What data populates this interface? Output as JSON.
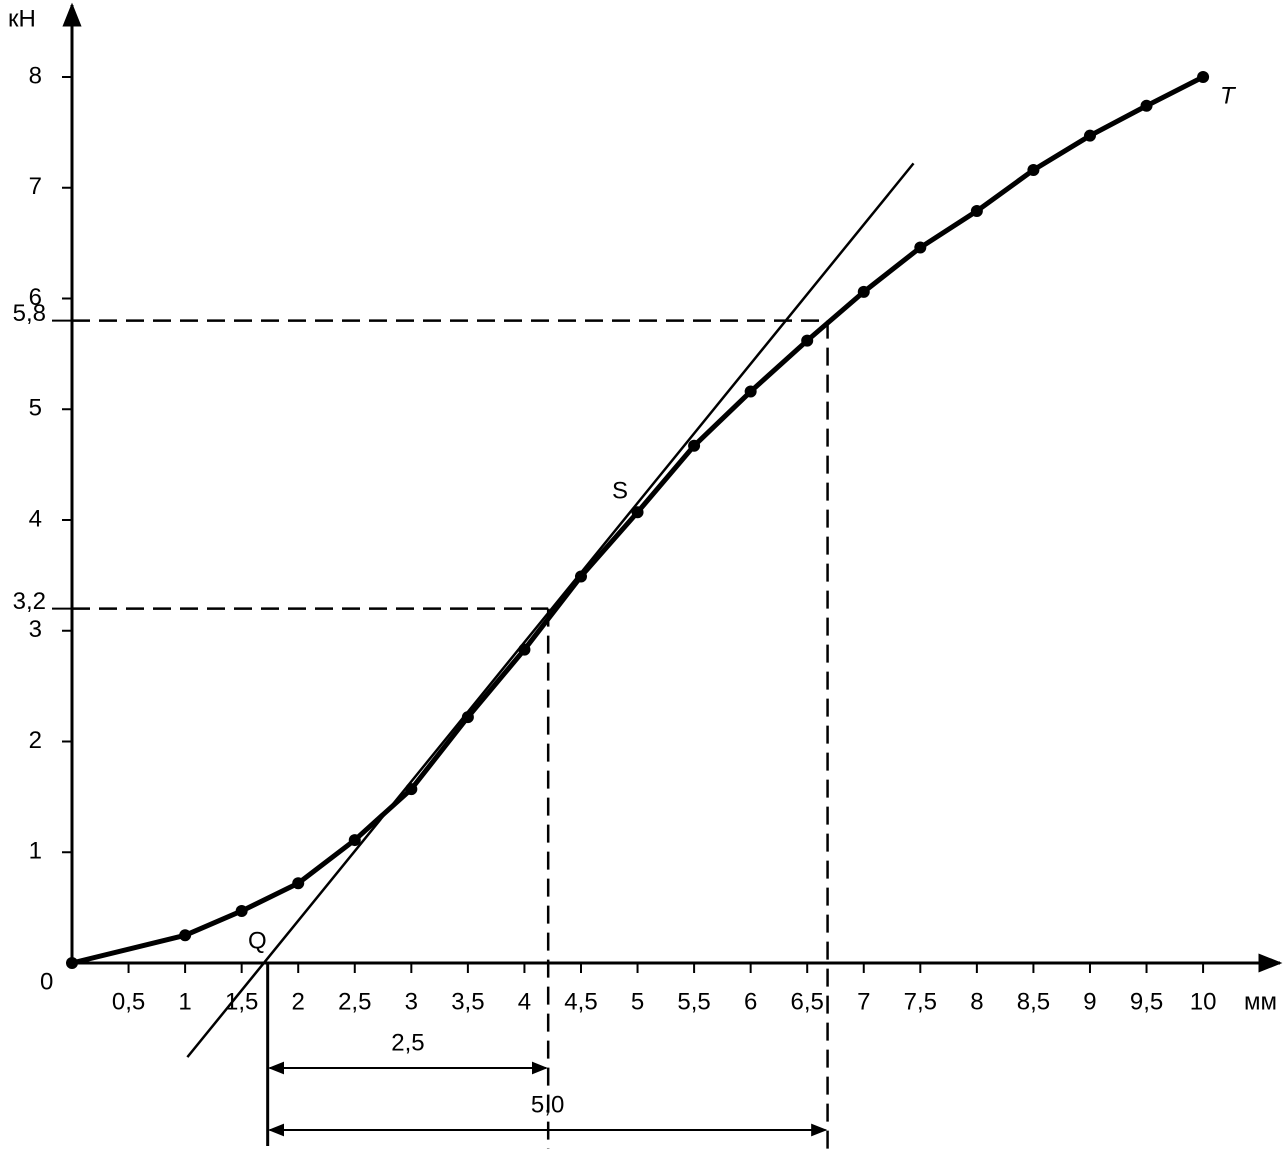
{
  "chart_data": {
    "type": "line",
    "x_label": "мм",
    "y_label": "кН",
    "origin_label": "0",
    "x": [
      0,
      1,
      1.5,
      2,
      2.5,
      3,
      3.5,
      4,
      4.5,
      5,
      5.5,
      6,
      6.5,
      7,
      7.5,
      8,
      8.5,
      9,
      9.5,
      10
    ],
    "values": [
      0,
      0.25,
      0.47,
      0.72,
      1.11,
      1.57,
      2.22,
      2.83,
      3.49,
      4.07,
      4.67,
      5.16,
      5.62,
      6.06,
      6.46,
      6.79,
      7.16,
      7.47,
      7.74,
      8.0
    ],
    "color": "#000000",
    "xlim": [
      0,
      10.68
    ],
    "ylim": [
      0,
      8.65
    ],
    "xticks": [
      {
        "value": 0.5,
        "label": "0,5"
      },
      1,
      {
        "value": 1.5,
        "label": "1,5"
      },
      2,
      {
        "value": 2.5,
        "label": "2,5"
      },
      3,
      {
        "value": 3.5,
        "label": "3,5"
      },
      4,
      {
        "value": 4.5,
        "label": "4,5"
      },
      5,
      {
        "value": 5.5,
        "label": "5,5"
      },
      6,
      {
        "value": 6.5,
        "label": "6,5"
      },
      7,
      {
        "value": 7.5,
        "label": "7,5"
      },
      8,
      {
        "value": 8.5,
        "label": "8,5"
      },
      9,
      {
        "value": 9.5,
        "label": "9,5"
      },
      10
    ],
    "yticks": [
      1,
      2,
      3,
      4,
      5,
      6,
      7,
      8
    ],
    "tangent": {
      "x": [
        1.02,
        7.44
      ],
      "y": [
        -0.85,
        7.22
      ]
    },
    "reference_lines": [
      {
        "x": 4.21,
        "y": 3.2,
        "label": "3,2"
      },
      {
        "x": 6.68,
        "y": 5.8,
        "label": "5,8"
      }
    ],
    "q_x": 1.73,
    "dimensions": [
      {
        "from": 1.73,
        "to": 4.21,
        "label": "2,5"
      },
      {
        "from": 1.73,
        "to": 6.68,
        "label": "5,0"
      }
    ],
    "annotations": [
      "Q",
      "S",
      "T"
    ]
  }
}
